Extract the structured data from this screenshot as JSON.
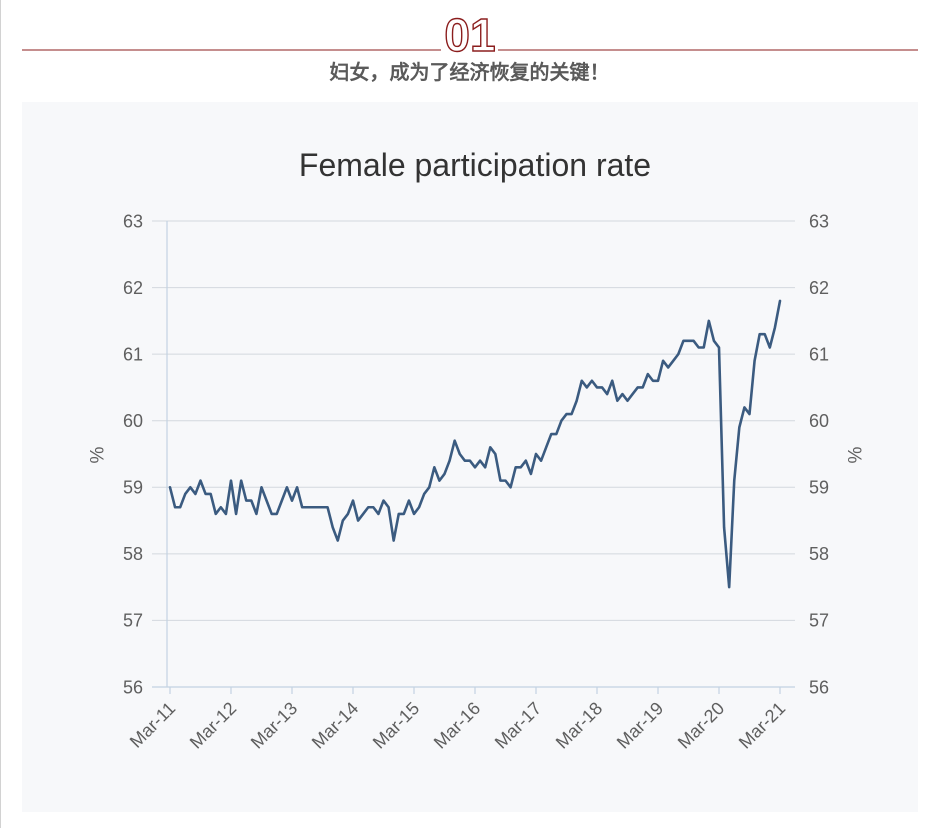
{
  "header": {
    "section_number": "01",
    "subtitle": "妇女，成为了经济恢复的关键！",
    "accent_color": "#8b1d1d"
  },
  "chart_data": {
    "type": "line",
    "title": "Female participation rate",
    "ylabel": "%",
    "y2label": "%",
    "ylim": [
      56,
      63
    ],
    "y_ticks": [
      56,
      57,
      58,
      59,
      60,
      61,
      62,
      63
    ],
    "x_ticks": [
      "Mar-11",
      "Mar-12",
      "Mar-13",
      "Mar-14",
      "Mar-15",
      "Mar-16",
      "Mar-17",
      "Mar-18",
      "Mar-19",
      "Mar-20",
      "Mar-21"
    ],
    "grid": "horizontal",
    "legend": "none",
    "background_color": "#f7f8fa",
    "x": [
      "Mar-11",
      "Apr-11",
      "May-11",
      "Jun-11",
      "Jul-11",
      "Aug-11",
      "Sep-11",
      "Oct-11",
      "Nov-11",
      "Dec-11",
      "Jan-12",
      "Feb-12",
      "Mar-12",
      "Apr-12",
      "May-12",
      "Jun-12",
      "Jul-12",
      "Aug-12",
      "Sep-12",
      "Oct-12",
      "Nov-12",
      "Dec-12",
      "Jan-13",
      "Feb-13",
      "Mar-13",
      "Apr-13",
      "May-13",
      "Jun-13",
      "Jul-13",
      "Aug-13",
      "Sep-13",
      "Oct-13",
      "Nov-13",
      "Dec-13",
      "Jan-14",
      "Feb-14",
      "Mar-14",
      "Apr-14",
      "May-14",
      "Jun-14",
      "Jul-14",
      "Aug-14",
      "Sep-14",
      "Oct-14",
      "Nov-14",
      "Dec-14",
      "Jan-15",
      "Feb-15",
      "Mar-15",
      "Apr-15",
      "May-15",
      "Jun-15",
      "Jul-15",
      "Aug-15",
      "Sep-15",
      "Oct-15",
      "Nov-15",
      "Dec-15",
      "Jan-16",
      "Feb-16",
      "Mar-16",
      "Apr-16",
      "May-16",
      "Jun-16",
      "Jul-16",
      "Aug-16",
      "Sep-16",
      "Oct-16",
      "Nov-16",
      "Dec-16",
      "Jan-17",
      "Feb-17",
      "Mar-17",
      "Apr-17",
      "May-17",
      "Jun-17",
      "Jul-17",
      "Aug-17",
      "Sep-17",
      "Oct-17",
      "Nov-17",
      "Dec-17",
      "Jan-18",
      "Feb-18",
      "Mar-18",
      "Apr-18",
      "May-18",
      "Jun-18",
      "Jul-18",
      "Aug-18",
      "Sep-18",
      "Oct-18",
      "Nov-18",
      "Dec-18",
      "Jan-19",
      "Feb-19",
      "Mar-19",
      "Apr-19",
      "May-19",
      "Jun-19",
      "Jul-19",
      "Aug-19",
      "Sep-19",
      "Oct-19",
      "Nov-19",
      "Dec-19",
      "Jan-20",
      "Feb-20",
      "Mar-20",
      "Apr-20",
      "May-20",
      "Jun-20",
      "Jul-20",
      "Aug-20",
      "Sep-20",
      "Oct-20",
      "Nov-20",
      "Dec-20",
      "Jan-21",
      "Feb-21",
      "Mar-21"
    ],
    "series": [
      {
        "color": "#3b5b80",
        "y": [
          59.0,
          58.7,
          58.7,
          58.9,
          59.0,
          58.9,
          59.1,
          58.9,
          58.9,
          58.6,
          58.7,
          58.6,
          59.1,
          58.6,
          59.1,
          58.8,
          58.8,
          58.6,
          59.0,
          58.8,
          58.6,
          58.6,
          58.8,
          59.0,
          58.8,
          59.0,
          58.7,
          58.7,
          58.7,
          58.7,
          58.7,
          58.7,
          58.4,
          58.2,
          58.5,
          58.6,
          58.8,
          58.5,
          58.6,
          58.7,
          58.7,
          58.6,
          58.8,
          58.7,
          58.2,
          58.6,
          58.6,
          58.8,
          58.6,
          58.7,
          58.9,
          59.0,
          59.3,
          59.1,
          59.2,
          59.4,
          59.7,
          59.5,
          59.4,
          59.4,
          59.3,
          59.4,
          59.3,
          59.6,
          59.5,
          59.1,
          59.1,
          59.0,
          59.3,
          59.3,
          59.4,
          59.2,
          59.5,
          59.4,
          59.6,
          59.8,
          59.8,
          60.0,
          60.1,
          60.1,
          60.3,
          60.6,
          60.5,
          60.6,
          60.5,
          60.5,
          60.4,
          60.6,
          60.3,
          60.4,
          60.3,
          60.4,
          60.5,
          60.5,
          60.7,
          60.6,
          60.6,
          60.9,
          60.8,
          60.9,
          61.0,
          61.2,
          61.2,
          61.2,
          61.1,
          61.1,
          61.5,
          61.2,
          61.1,
          58.4,
          57.5,
          59.1,
          59.9,
          60.2,
          60.1,
          60.9,
          61.3,
          61.3,
          61.1,
          61.4,
          61.8
        ]
      }
    ]
  }
}
